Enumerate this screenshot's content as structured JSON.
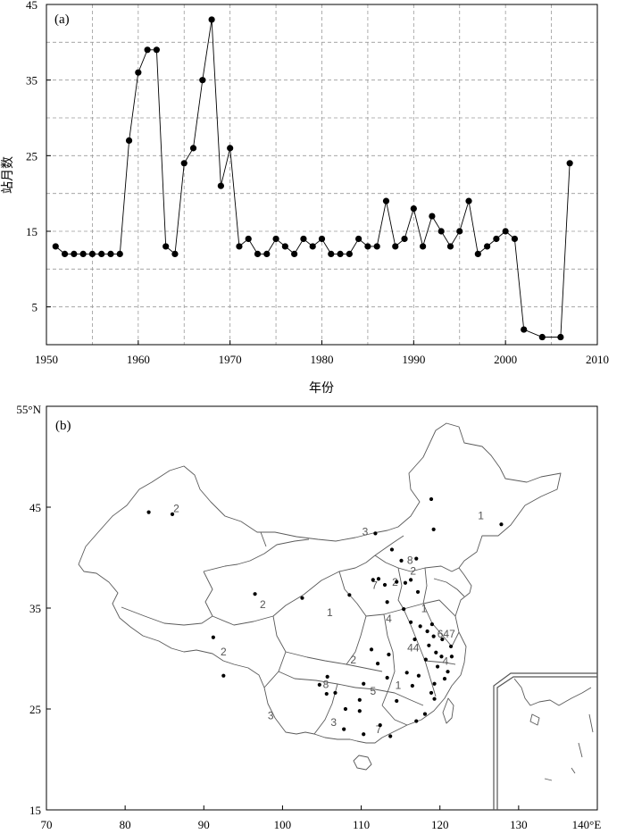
{
  "chart_data": [
    {
      "panel_label": "(a)",
      "type": "line",
      "xlabel": "年份",
      "ylabel": "站月数",
      "xlim": [
        1950,
        2010
      ],
      "ylim": [
        0,
        45
      ],
      "x_ticks": [
        1950,
        1960,
        1970,
        1980,
        1990,
        2000,
        2010
      ],
      "y_ticks": [
        5,
        15,
        25,
        35,
        45
      ],
      "grid": true,
      "marker": "filled-circle",
      "x": [
        1951,
        1952,
        1953,
        1954,
        1955,
        1956,
        1957,
        1958,
        1959,
        1960,
        1961,
        1962,
        1963,
        1964,
        1965,
        1966,
        1967,
        1968,
        1969,
        1970,
        1971,
        1972,
        1973,
        1974,
        1975,
        1976,
        1977,
        1978,
        1979,
        1980,
        1981,
        1982,
        1983,
        1984,
        1985,
        1986,
        1987,
        1988,
        1989,
        1990,
        1991,
        1992,
        1993,
        1994,
        1995,
        1996,
        1997,
        1998,
        1999,
        2000,
        2001,
        2002,
        2004,
        2006,
        2007
      ],
      "y": [
        13,
        12,
        12,
        12,
        12,
        12,
        12,
        12,
        27,
        36,
        39,
        39,
        13,
        12,
        24,
        26,
        35,
        43,
        21,
        26,
        13,
        14,
        12,
        12,
        14,
        13,
        12,
        14,
        13,
        14,
        12,
        12,
        12,
        14,
        13,
        13,
        19,
        13,
        14,
        18,
        13,
        17,
        15,
        13,
        15,
        19,
        12,
        13,
        14,
        15,
        14,
        2,
        1,
        1,
        24
      ]
    },
    {
      "panel_label": "(b)",
      "type": "map",
      "x_ticks": [
        "70",
        "80",
        "90",
        "100",
        "110",
        "120",
        "130",
        "140°E"
      ],
      "y_ticks": [
        "55°N",
        "45",
        "35",
        "25",
        "15"
      ],
      "xlim": [
        70,
        140
      ],
      "ylim": [
        15,
        55
      ],
      "region_labels": [
        {
          "text": "2",
          "lon": 86.5,
          "lat": 44.5
        },
        {
          "text": "3",
          "lon": 110.5,
          "lat": 42.2
        },
        {
          "text": "1",
          "lon": 125.2,
          "lat": 43.8
        },
        {
          "text": "2",
          "lon": 97.5,
          "lat": 35.0
        },
        {
          "text": "1",
          "lon": 106.0,
          "lat": 34.2
        },
        {
          "text": "4",
          "lon": 113.5,
          "lat": 33.6
        },
        {
          "text": "1",
          "lon": 118.0,
          "lat": 34.6
        },
        {
          "text": "2",
          "lon": 92.5,
          "lat": 30.3
        },
        {
          "text": "2",
          "lon": 109.0,
          "lat": 29.5
        },
        {
          "text": "5",
          "lon": 111.5,
          "lat": 26.4
        },
        {
          "text": "1",
          "lon": 114.7,
          "lat": 27.0
        },
        {
          "text": "3",
          "lon": 98.5,
          "lat": 24.0
        },
        {
          "text": "3",
          "lon": 106.5,
          "lat": 23.3
        },
        {
          "text": "7",
          "lon": 112.2,
          "lat": 22.6
        },
        {
          "text": "2",
          "lon": 114.3,
          "lat": 37.2
        },
        {
          "text": "2",
          "lon": 116.6,
          "lat": 38.3
        },
        {
          "text": "8",
          "lon": 116.2,
          "lat": 39.4
        },
        {
          "text": "7",
          "lon": 111.7,
          "lat": 36.9
        },
        {
          "text": "44",
          "lon": 116.6,
          "lat": 30.7
        },
        {
          "text": "647",
          "lon": 120.8,
          "lat": 32.1
        },
        {
          "text": "4",
          "lon": 120.7,
          "lat": 29.4
        },
        {
          "text": "8",
          "lon": 105.5,
          "lat": 27.1
        }
      ],
      "stations": [
        {
          "lon": 83.0,
          "lat": 44.5
        },
        {
          "lon": 86.0,
          "lat": 44.3
        },
        {
          "lon": 96.5,
          "lat": 36.4
        },
        {
          "lon": 102.5,
          "lat": 36.0
        },
        {
          "lon": 91.2,
          "lat": 32.1
        },
        {
          "lon": 92.5,
          "lat": 28.3
        },
        {
          "lon": 118.9,
          "lat": 45.8
        },
        {
          "lon": 119.2,
          "lat": 42.8
        },
        {
          "lon": 111.8,
          "lat": 42.4
        },
        {
          "lon": 108.5,
          "lat": 36.3
        },
        {
          "lon": 127.8,
          "lat": 43.3
        },
        {
          "lon": 113.9,
          "lat": 40.8
        },
        {
          "lon": 115.1,
          "lat": 39.7
        },
        {
          "lon": 117.0,
          "lat": 39.9
        },
        {
          "lon": 111.5,
          "lat": 37.8
        },
        {
          "lon": 112.2,
          "lat": 37.9
        },
        {
          "lon": 113.0,
          "lat": 37.3
        },
        {
          "lon": 114.5,
          "lat": 37.6
        },
        {
          "lon": 115.6,
          "lat": 37.5
        },
        {
          "lon": 116.3,
          "lat": 37.8
        },
        {
          "lon": 117.2,
          "lat": 36.6
        },
        {
          "lon": 113.3,
          "lat": 35.6
        },
        {
          "lon": 115.4,
          "lat": 34.9
        },
        {
          "lon": 116.3,
          "lat": 33.6
        },
        {
          "lon": 117.5,
          "lat": 33.2
        },
        {
          "lon": 118.4,
          "lat": 32.7
        },
        {
          "lon": 119.0,
          "lat": 33.4
        },
        {
          "lon": 119.2,
          "lat": 32.2
        },
        {
          "lon": 120.3,
          "lat": 31.9
        },
        {
          "lon": 116.8,
          "lat": 31.9
        },
        {
          "lon": 118.6,
          "lat": 31.3
        },
        {
          "lon": 119.5,
          "lat": 30.6
        },
        {
          "lon": 120.2,
          "lat": 30.2
        },
        {
          "lon": 121.4,
          "lat": 31.2
        },
        {
          "lon": 121.5,
          "lat": 30.2
        },
        {
          "lon": 121.0,
          "lat": 28.7
        },
        {
          "lon": 120.6,
          "lat": 28.0
        },
        {
          "lon": 119.7,
          "lat": 29.2
        },
        {
          "lon": 118.2,
          "lat": 29.9
        },
        {
          "lon": 119.3,
          "lat": 27.5
        },
        {
          "lon": 118.9,
          "lat": 26.6
        },
        {
          "lon": 119.3,
          "lat": 26.0
        },
        {
          "lon": 118.1,
          "lat": 24.5
        },
        {
          "lon": 117.0,
          "lat": 23.8
        },
        {
          "lon": 117.3,
          "lat": 28.3
        },
        {
          "lon": 116.5,
          "lat": 27.3
        },
        {
          "lon": 115.8,
          "lat": 28.6
        },
        {
          "lon": 114.5,
          "lat": 25.8
        },
        {
          "lon": 113.3,
          "lat": 28.1
        },
        {
          "lon": 112.1,
          "lat": 29.5
        },
        {
          "lon": 110.3,
          "lat": 27.5
        },
        {
          "lon": 109.8,
          "lat": 25.9
        },
        {
          "lon": 105.7,
          "lat": 28.2
        },
        {
          "lon": 104.7,
          "lat": 27.4
        },
        {
          "lon": 106.7,
          "lat": 26.6
        },
        {
          "lon": 105.6,
          "lat": 26.5
        },
        {
          "lon": 108.0,
          "lat": 25.0
        },
        {
          "lon": 107.8,
          "lat": 23.0
        },
        {
          "lon": 110.3,
          "lat": 22.5
        },
        {
          "lon": 112.4,
          "lat": 23.4
        },
        {
          "lon": 113.7,
          "lat": 22.3
        },
        {
          "lon": 111.3,
          "lat": 30.9
        },
        {
          "lon": 109.8,
          "lat": 24.8
        },
        {
          "lon": 113.5,
          "lat": 30.4
        }
      ]
    }
  ]
}
